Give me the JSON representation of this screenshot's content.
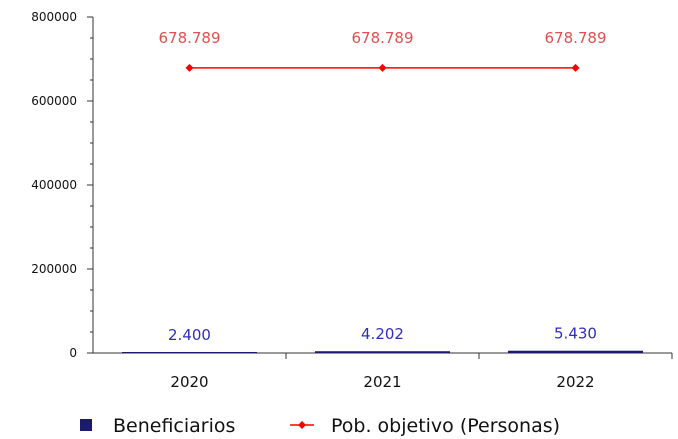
{
  "chart_data": {
    "type": "bar",
    "categories": [
      "2020",
      "2021",
      "2022"
    ],
    "ylim": [
      0,
      800000
    ],
    "yticks": [
      0,
      200000,
      400000,
      600000,
      800000
    ],
    "grid": false,
    "legend_position": "bottom",
    "series": [
      {
        "name": "Beneficiarios",
        "type": "bar",
        "values": [
          2400,
          4202,
          5430
        ],
        "labels": [
          "2.400",
          "4.202",
          "5.430"
        ],
        "color": "#1a1a6e",
        "label_color": "#2e2eb8"
      },
      {
        "name": "Pob. objetivo (Personas)",
        "type": "line",
        "values": [
          678789,
          678789,
          678789
        ],
        "labels": [
          "678.789",
          "678.789",
          "678.789"
        ],
        "color": "#ff0000",
        "label_color": "#e05050"
      }
    ]
  }
}
